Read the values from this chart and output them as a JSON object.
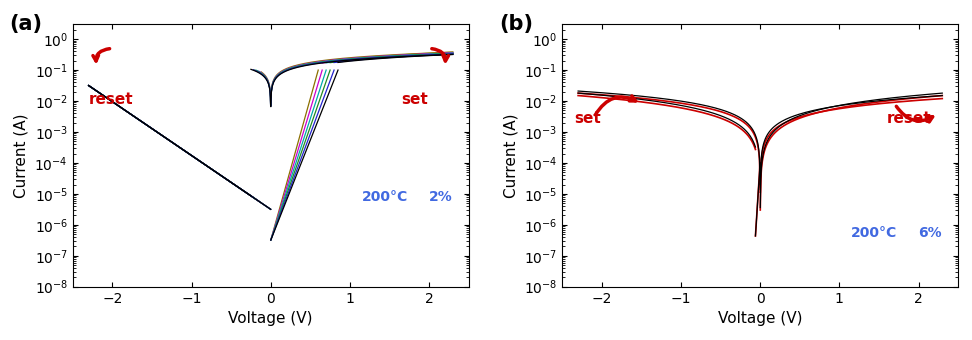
{
  "panel_a": {
    "label": "(a)",
    "temp": "200°C",
    "pct": "2%",
    "xlim": [
      -2.5,
      2.5
    ],
    "xlabel": "Voltage (V)",
    "ylabel": "Current (A)",
    "colors": [
      "#8B7000",
      "#CC00CC",
      "#00AAAA",
      "#228B22",
      "#2222CC",
      "#000000"
    ],
    "reset_label": "reset",
    "set_label": "set"
  },
  "panel_b": {
    "label": "(b)",
    "temp": "200°C",
    "pct": "6%",
    "xlim": [
      -2.5,
      2.5
    ],
    "xlabel": "Voltage (V)",
    "ylabel": "Current (A)",
    "colors": [
      "#CC0000",
      "#000000"
    ],
    "reset_label": "reset",
    "set_label": "set"
  },
  "background_color": "#ffffff",
  "text_color_temp": "#4169E1",
  "arrow_color": "#CC0000",
  "ylim": [
    1e-08,
    3.0
  ]
}
